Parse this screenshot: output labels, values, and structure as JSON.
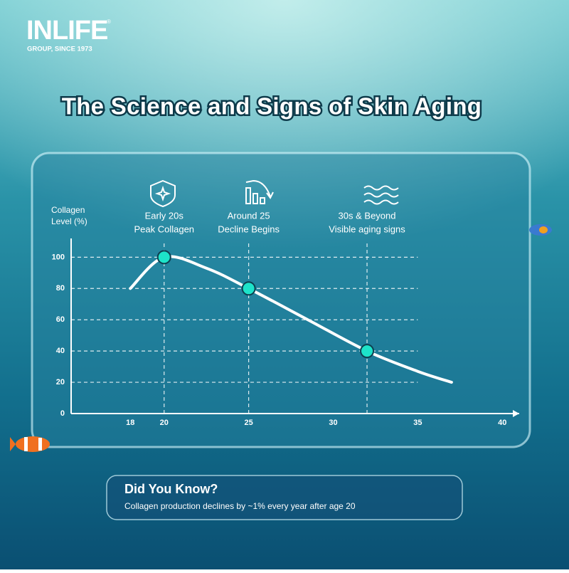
{
  "logo": {
    "name": "INLIFE",
    "mark": "®",
    "tagline": "GROUP, SINCE 1973"
  },
  "chart_data": {
    "type": "line",
    "title": "The Science and Signs of Skin Aging",
    "y_label": [
      "Collagen",
      "Level (%)"
    ],
    "x": [
      18,
      20,
      22.5,
      25,
      28.5,
      32,
      35,
      37
    ],
    "series": [
      {
        "color": "#ffffff",
        "values": [
          80,
          100,
          93,
          80,
          60,
          40,
          27,
          20
        ]
      }
    ],
    "highlights": [
      {
        "x": 20,
        "y": 100,
        "lines": [
          "Early 20s",
          "Peak Collagen"
        ]
      },
      {
        "x": 25,
        "y": 80,
        "lines": [
          "Around 25",
          "Decline Begins"
        ]
      },
      {
        "x": 32,
        "y": 40,
        "lines": [
          "30s & Beyond",
          "Visible aging signs"
        ]
      }
    ],
    "highlight_color": "#1de3c9",
    "xlim": [
      14.5,
      41
    ],
    "ylim": [
      0,
      112
    ],
    "xticks": [
      18,
      20,
      25,
      30,
      35,
      40
    ],
    "yticks": [
      0,
      20,
      40,
      60,
      80,
      100
    ],
    "grid": true
  },
  "note": {
    "title": "Did You Know?",
    "text": "Collagen production declines by ~1% every year after age 20"
  }
}
